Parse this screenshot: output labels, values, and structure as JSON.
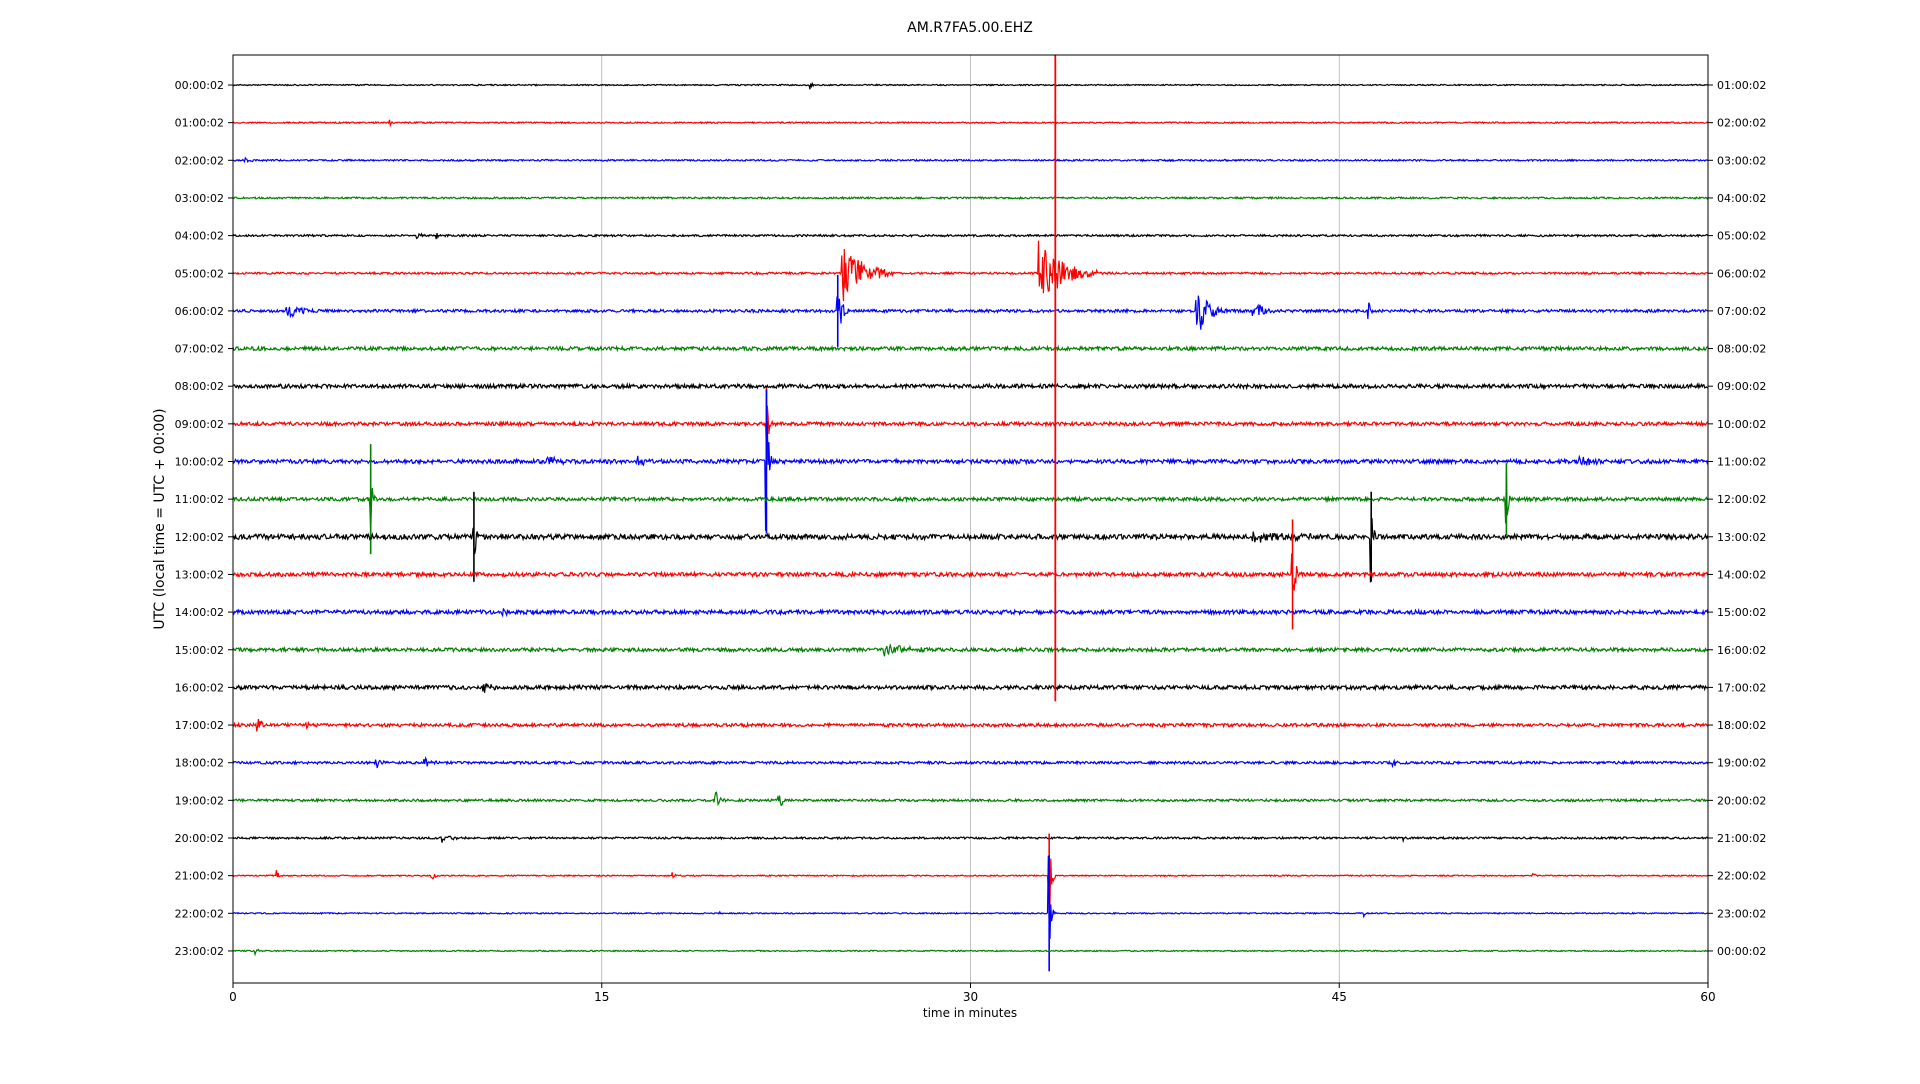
{
  "chart_data": {
    "type": "line",
    "title": "AM.R7FA5.00.EHZ",
    "xlabel": "time in minutes",
    "ylabel": "UTC (local time = UTC + 00:00)",
    "xlim": [
      0,
      60
    ],
    "x_ticks": [
      "0",
      "15",
      "30",
      "45",
      "60"
    ],
    "x_tick_values": [
      0,
      15,
      30,
      45,
      60
    ],
    "grid": "vertical",
    "colors": [
      "#000000",
      "#ff0000",
      "#0000ff",
      "#008000"
    ],
    "rows": [
      {
        "left": "00:00:02",
        "right": "01:00:02",
        "noise": 0.6,
        "events": [
          {
            "t": 23.5,
            "amp": 6,
            "dur": 0.15
          }
        ]
      },
      {
        "left": "01:00:02",
        "right": "02:00:02",
        "noise": 0.7,
        "events": [
          {
            "t": 6.4,
            "amp": 5,
            "dur": 0.1
          }
        ]
      },
      {
        "left": "02:00:02",
        "right": "03:00:02",
        "noise": 0.8,
        "events": [
          {
            "t": 0.5,
            "amp": 5,
            "dur": 0.4
          }
        ]
      },
      {
        "left": "03:00:02",
        "right": "04:00:02",
        "noise": 0.9,
        "events": []
      },
      {
        "left": "04:00:02",
        "right": "05:00:02",
        "noise": 1.0,
        "events": [
          {
            "t": 7.5,
            "amp": 6,
            "dur": 0.3
          },
          {
            "t": 8.3,
            "amp": 5,
            "dur": 0.1
          }
        ]
      },
      {
        "left": "05:00:02",
        "right": "06:00:02",
        "noise": 1.0,
        "events": [
          {
            "t": 24.8,
            "amp": 34,
            "dur": 2.0
          },
          {
            "t": 32.8,
            "amp": 34,
            "dur": 2.3
          }
        ]
      },
      {
        "left": "06:00:02",
        "right": "07:00:02",
        "noise": 1.4,
        "events": [
          {
            "t": 2.2,
            "amp": 8,
            "dur": 1.4
          },
          {
            "t": 24.6,
            "amp": 36,
            "dur": 0.4
          },
          {
            "t": 39.2,
            "amp": 26,
            "dur": 1.2
          },
          {
            "t": 41.5,
            "amp": 12,
            "dur": 0.8
          },
          {
            "t": 46.2,
            "amp": 10,
            "dur": 0.1
          }
        ]
      },
      {
        "left": "07:00:02",
        "right": "08:00:02",
        "noise": 1.8,
        "events": []
      },
      {
        "left": "08:00:02",
        "right": "09:00:02",
        "noise": 2.0,
        "events": []
      },
      {
        "left": "09:00:02",
        "right": "10:00:02",
        "noise": 1.8,
        "events": [
          {
            "t": 21.7,
            "amp": 36,
            "dur": 0.2
          }
        ]
      },
      {
        "left": "10:00:02",
        "right": "11:00:02",
        "noise": 2.0,
        "events": [
          {
            "t": 21.7,
            "amp": 72,
            "dur": 0.2
          },
          {
            "t": 12.8,
            "amp": 6,
            "dur": 1.0
          },
          {
            "t": 16.5,
            "amp": 7,
            "dur": 0.6
          },
          {
            "t": 54.8,
            "amp": 6,
            "dur": 1.2
          }
        ]
      },
      {
        "left": "11:00:02",
        "right": "12:00:02",
        "noise": 1.8,
        "events": [
          {
            "t": 5.6,
            "amp": 55,
            "dur": 0.15
          },
          {
            "t": 51.8,
            "amp": 36,
            "dur": 0.15
          }
        ]
      },
      {
        "left": "12:00:02",
        "right": "13:00:02",
        "noise": 2.6,
        "events": [
          {
            "t": 9.8,
            "amp": 45,
            "dur": 0.15
          },
          {
            "t": 46.3,
            "amp": 45,
            "dur": 0.15
          },
          {
            "t": 41.5,
            "amp": 6,
            "dur": 2.5
          }
        ]
      },
      {
        "left": "13:00:02",
        "right": "14:00:02",
        "noise": 2.0,
        "events": [
          {
            "t": 43.1,
            "amp": 55,
            "dur": 0.2
          }
        ]
      },
      {
        "left": "14:00:02",
        "right": "15:00:02",
        "noise": 2.0,
        "events": [
          {
            "t": 11.0,
            "amp": 5,
            "dur": 0.5
          }
        ]
      },
      {
        "left": "15:00:02",
        "right": "16:00:02",
        "noise": 1.8,
        "events": [
          {
            "t": 26.5,
            "amp": 7,
            "dur": 2.0
          },
          {
            "t": 59.5,
            "amp": 10,
            "dur": 0.2
          }
        ]
      },
      {
        "left": "16:00:02",
        "right": "17:00:02",
        "noise": 2.0,
        "events": [
          {
            "t": 10.2,
            "amp": 6,
            "dur": 0.6
          }
        ]
      },
      {
        "left": "17:00:02",
        "right": "18:00:02",
        "noise": 1.6,
        "events": [
          {
            "t": 1.0,
            "amp": 6,
            "dur": 0.6
          },
          {
            "t": 3.0,
            "amp": 5,
            "dur": 0.3
          }
        ]
      },
      {
        "left": "18:00:02",
        "right": "19:00:02",
        "noise": 1.3,
        "events": [
          {
            "t": 5.8,
            "amp": 6,
            "dur": 0.5
          },
          {
            "t": 7.8,
            "amp": 5,
            "dur": 0.6
          },
          {
            "t": 47.2,
            "amp": 5,
            "dur": 0.2
          }
        ]
      },
      {
        "left": "19:00:02",
        "right": "20:00:02",
        "noise": 1.2,
        "events": [
          {
            "t": 19.6,
            "amp": 11,
            "dur": 0.4
          },
          {
            "t": 22.2,
            "amp": 8,
            "dur": 0.5
          }
        ]
      },
      {
        "left": "20:00:02",
        "right": "21:00:02",
        "noise": 1.0,
        "events": [
          {
            "t": 8.5,
            "amp": 4,
            "dur": 1.0
          },
          {
            "t": 47.6,
            "amp": 6,
            "dur": 0.1
          }
        ]
      },
      {
        "left": "21:00:02",
        "right": "22:00:02",
        "noise": 0.6,
        "events": [
          {
            "t": 1.8,
            "amp": 6,
            "dur": 0.1
          },
          {
            "t": 8.1,
            "amp": 8,
            "dur": 0.2
          },
          {
            "t": 17.9,
            "amp": 6,
            "dur": 0.1
          },
          {
            "t": 33.2,
            "amp": 42,
            "dur": 0.2
          },
          {
            "t": 52.9,
            "amp": 5,
            "dur": 0.1
          }
        ]
      },
      {
        "left": "22:00:02",
        "right": "23:00:02",
        "noise": 0.6,
        "events": [
          {
            "t": 33.2,
            "amp": 58,
            "dur": 0.2
          },
          {
            "t": 19.8,
            "amp": 6,
            "dur": 0.1
          },
          {
            "t": 46.0,
            "amp": 5,
            "dur": 0.1
          }
        ]
      },
      {
        "left": "23:00:02",
        "right": "00:00:02",
        "noise": 0.6,
        "events": [
          {
            "t": 0.9,
            "amp": 5,
            "dur": 0.2
          }
        ]
      }
    ],
    "spike": {
      "row_start": 0,
      "row_end": 16,
      "t": 33.45,
      "color": "#ff0000"
    }
  }
}
